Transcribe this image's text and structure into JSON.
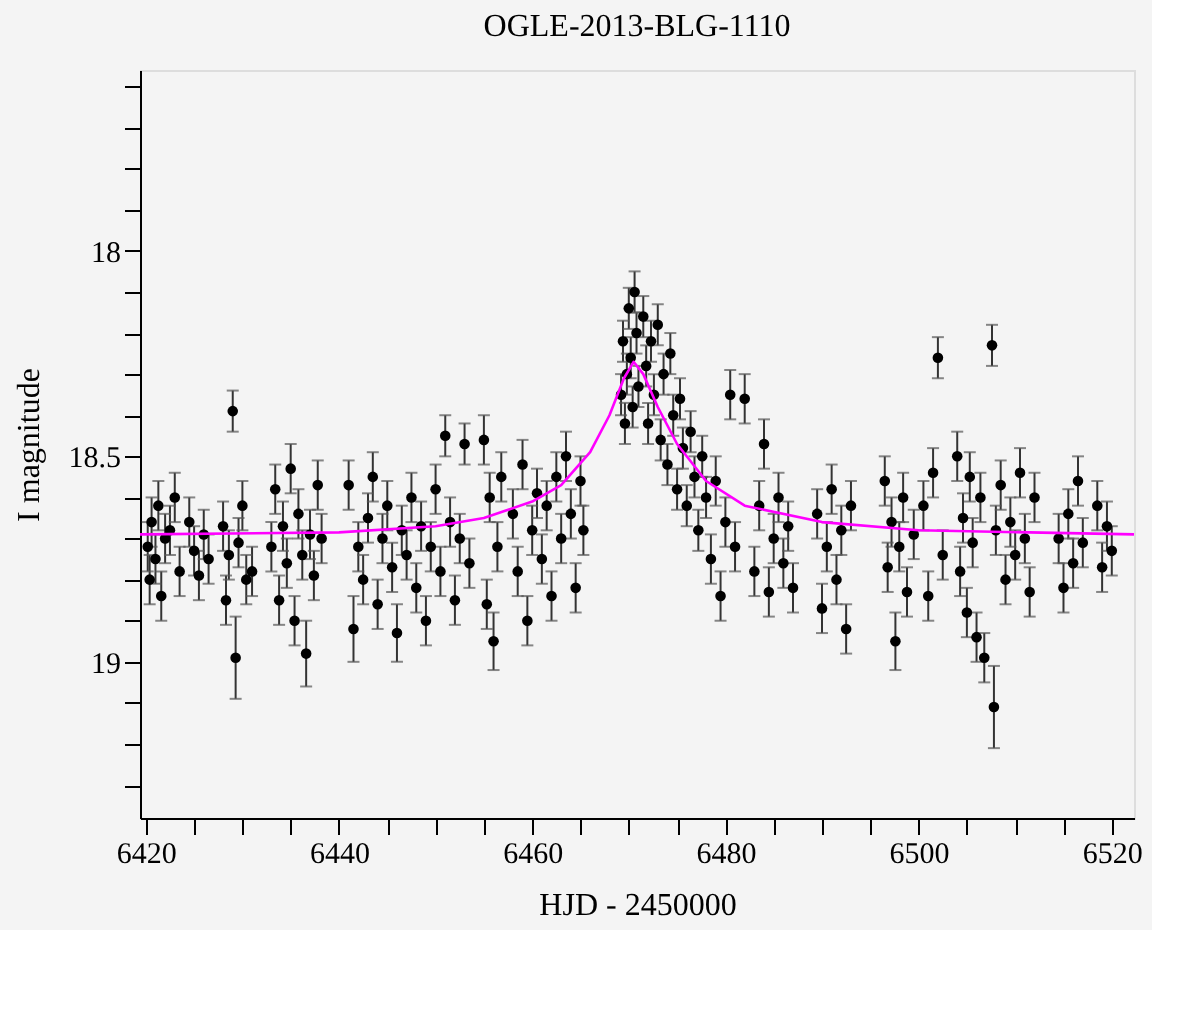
{
  "chart_data": {
    "type": "scatter",
    "title": "OGLE-2013-BLG-1110",
    "xlabel": "HJD - 2450000",
    "ylabel": "I magnitude",
    "xlim": [
      6419.4,
      6522.3
    ],
    "ylim": [
      19.38,
      17.56
    ],
    "xticks": [
      6420,
      {
        "value": 6425,
        "label": null
      },
      {
        "value": 6430,
        "label": null
      },
      {
        "value": 6435,
        "label": null
      },
      6440,
      {
        "value": 6445,
        "label": null
      },
      {
        "value": 6450,
        "label": null
      },
      {
        "value": 6455,
        "label": null
      },
      6460,
      {
        "value": 6465,
        "label": null
      },
      {
        "value": 6470,
        "label": null
      },
      {
        "value": 6475,
        "label": null
      },
      6480,
      {
        "value": 6485,
        "label": null
      },
      {
        "value": 6490,
        "label": null
      },
      {
        "value": 6495,
        "label": null
      },
      6500,
      {
        "value": 6505,
        "label": null
      },
      {
        "value": 6510,
        "label": null
      },
      {
        "value": 6515,
        "label": null
      },
      6520
    ],
    "yticks": [
      {
        "value": 17.6,
        "label": null
      },
      {
        "value": 17.7,
        "label": null
      },
      {
        "value": 17.8,
        "label": null
      },
      {
        "value": 17.9,
        "label": null
      },
      18,
      {
        "value": 18.1,
        "label": null
      },
      {
        "value": 18.2,
        "label": null
      },
      {
        "value": 18.3,
        "label": null
      },
      {
        "value": 18.4,
        "label": null
      },
      18.5,
      {
        "value": 18.6,
        "label": null
      },
      {
        "value": 18.7,
        "label": null
      },
      {
        "value": 18.8,
        "label": null
      },
      {
        "value": 18.9,
        "label": null
      },
      19,
      {
        "value": 19.1,
        "label": null
      },
      {
        "value": 19.2,
        "label": null
      },
      {
        "value": 19.3,
        "label": null
      }
    ],
    "grid": false,
    "series": [
      {
        "color": "#000000",
        "marker": "circle",
        "x": [
          6420.2,
          6420.4,
          6420.6,
          6421.0,
          6421.3,
          6421.6,
          6422.0,
          6422.5,
          6423.0,
          6423.5,
          6424.5,
          6425.0,
          6425.5,
          6426.0,
          6426.5,
          6428.0,
          6428.3,
          6428.6,
          6429.0,
          6429.3,
          6429.6,
          6430.0,
          6430.4,
          6431.0,
          6433.0,
          6433.4,
          6433.8,
          6434.2,
          6434.6,
          6435.0,
          6435.4,
          6435.8,
          6436.2,
          6436.6,
          6437.0,
          6437.4,
          6437.8,
          6438.2,
          6441.0,
          6441.5,
          6442.0,
          6442.5,
          6443.0,
          6443.5,
          6444.0,
          6444.5,
          6445.0,
          6445.5,
          6446.0,
          6446.5,
          6447.0,
          6447.5,
          6448.0,
          6448.5,
          6449.0,
          6449.5,
          6450.0,
          6450.5,
          6451.0,
          6451.5,
          6452.0,
          6452.5,
          6453.0,
          6453.5,
          6455.0,
          6455.3,
          6455.6,
          6456.0,
          6456.4,
          6456.8,
          6458.0,
          6458.5,
          6459.0,
          6459.5,
          6460.0,
          6460.5,
          6461.0,
          6461.5,
          6462.0,
          6462.5,
          6463.0,
          6463.5,
          6464.0,
          6464.5,
          6465.0,
          6465.3,
          6469.2,
          6469.4,
          6469.6,
          6469.8,
          6470.0,
          6470.2,
          6470.4,
          6470.6,
          6470.8,
          6471.0,
          6471.5,
          6471.8,
          6472.0,
          6472.3,
          6472.6,
          6473.0,
          6473.3,
          6473.6,
          6474.0,
          6474.3,
          6474.6,
          6475.0,
          6475.3,
          6475.6,
          6476.0,
          6476.4,
          6476.8,
          6477.2,
          6477.6,
          6478.0,
          6478.5,
          6479.0,
          6479.5,
          6480.0,
          6480.5,
          6481.0,
          6482.0,
          6483.0,
          6483.5,
          6484.0,
          6484.5,
          6485.0,
          6485.5,
          6486.0,
          6486.5,
          6487.0,
          6489.5,
          6490.0,
          6490.5,
          6491.0,
          6491.5,
          6492.0,
          6492.5,
          6493.0,
          6496.5,
          6496.8,
          6497.2,
          6497.6,
          6498.0,
          6498.4,
          6498.8,
          6499.5,
          6500.5,
          6501.0,
          6501.5,
          6502.0,
          6502.5,
          6504.0,
          6504.3,
          6504.6,
          6505.0,
          6505.3,
          6505.6,
          6506.0,
          6506.4,
          6506.8,
          6507.6,
          6507.8,
          6508.0,
          6508.5,
          6509.0,
          6509.5,
          6510.0,
          6510.5,
          6511.0,
          6511.5,
          6512.0,
          6514.5,
          6515.0,
          6515.5,
          6516.0,
          6516.5,
          6517.0,
          6518.5,
          6519.0,
          6519.5,
          6520.0
        ],
        "values": [
          18.72,
          18.8,
          18.66,
          18.75,
          18.62,
          18.84,
          18.7,
          18.68,
          18.6,
          18.78,
          18.66,
          18.73,
          18.79,
          18.69,
          18.75,
          18.67,
          18.85,
          18.74,
          18.39,
          18.99,
          18.71,
          18.62,
          18.8,
          18.78,
          18.72,
          18.58,
          18.85,
          18.67,
          18.76,
          18.53,
          18.9,
          18.64,
          18.74,
          18.98,
          18.69,
          18.79,
          18.57,
          18.7,
          18.57,
          18.92,
          18.72,
          18.8,
          18.65,
          18.55,
          18.86,
          18.7,
          18.62,
          18.77,
          18.93,
          18.68,
          18.74,
          18.6,
          18.82,
          18.67,
          18.9,
          18.72,
          18.58,
          18.78,
          18.45,
          18.66,
          18.85,
          18.7,
          18.47,
          18.76,
          18.46,
          18.86,
          18.6,
          18.95,
          18.72,
          18.55,
          18.64,
          18.78,
          18.52,
          18.9,
          18.68,
          18.59,
          18.75,
          18.62,
          18.84,
          18.55,
          18.7,
          18.5,
          18.64,
          18.82,
          18.56,
          18.68,
          18.35,
          18.22,
          18.42,
          18.3,
          18.14,
          18.26,
          18.38,
          18.1,
          18.2,
          18.33,
          18.16,
          18.28,
          18.42,
          18.22,
          18.35,
          18.18,
          18.46,
          18.3,
          18.52,
          18.25,
          18.4,
          18.58,
          18.36,
          18.48,
          18.62,
          18.44,
          18.55,
          18.68,
          18.5,
          18.6,
          18.75,
          18.56,
          18.84,
          18.66,
          18.35,
          18.72,
          18.36,
          18.78,
          18.62,
          18.47,
          18.83,
          18.7,
          18.6,
          18.76,
          18.67,
          18.82,
          18.64,
          18.87,
          18.72,
          18.58,
          18.8,
          18.68,
          18.92,
          18.62,
          18.56,
          18.77,
          18.66,
          18.95,
          18.72,
          18.6,
          18.83,
          18.69,
          18.62,
          18.84,
          18.54,
          18.26,
          18.74,
          18.5,
          18.78,
          18.65,
          18.88,
          18.55,
          18.71,
          18.94,
          18.6,
          18.99,
          18.23,
          19.11,
          18.68,
          18.57,
          18.8,
          18.66,
          18.74,
          18.54,
          18.7,
          18.83,
          18.6,
          18.7,
          18.82,
          18.64,
          18.76,
          18.56,
          18.71,
          18.62,
          18.77,
          18.67,
          18.73
        ],
        "errors": [
          0.06,
          0.06,
          0.06,
          0.06,
          0.06,
          0.06,
          0.06,
          0.06,
          0.06,
          0.06,
          0.06,
          0.06,
          0.06,
          0.06,
          0.06,
          0.06,
          0.06,
          0.06,
          0.05,
          0.1,
          0.06,
          0.06,
          0.06,
          0.06,
          0.06,
          0.06,
          0.06,
          0.06,
          0.06,
          0.06,
          0.06,
          0.06,
          0.06,
          0.08,
          0.06,
          0.06,
          0.06,
          0.06,
          0.06,
          0.08,
          0.06,
          0.06,
          0.06,
          0.06,
          0.06,
          0.06,
          0.06,
          0.06,
          0.07,
          0.06,
          0.06,
          0.06,
          0.06,
          0.06,
          0.06,
          0.06,
          0.06,
          0.06,
          0.05,
          0.06,
          0.06,
          0.06,
          0.05,
          0.06,
          0.06,
          0.06,
          0.06,
          0.07,
          0.06,
          0.06,
          0.06,
          0.06,
          0.06,
          0.06,
          0.06,
          0.06,
          0.06,
          0.06,
          0.06,
          0.06,
          0.06,
          0.06,
          0.06,
          0.06,
          0.06,
          0.06,
          0.05,
          0.05,
          0.05,
          0.05,
          0.05,
          0.05,
          0.05,
          0.05,
          0.05,
          0.05,
          0.05,
          0.05,
          0.05,
          0.05,
          0.05,
          0.05,
          0.05,
          0.05,
          0.05,
          0.05,
          0.05,
          0.05,
          0.05,
          0.05,
          0.05,
          0.05,
          0.05,
          0.05,
          0.05,
          0.05,
          0.06,
          0.06,
          0.06,
          0.06,
          0.06,
          0.06,
          0.06,
          0.06,
          0.06,
          0.06,
          0.06,
          0.06,
          0.06,
          0.06,
          0.06,
          0.06,
          0.06,
          0.06,
          0.06,
          0.06,
          0.06,
          0.06,
          0.06,
          0.06,
          0.06,
          0.06,
          0.06,
          0.07,
          0.06,
          0.06,
          0.06,
          0.06,
          0.06,
          0.06,
          0.06,
          0.05,
          0.06,
          0.06,
          0.06,
          0.06,
          0.06,
          0.06,
          0.06,
          0.06,
          0.06,
          0.06,
          0.05,
          0.1,
          0.06,
          0.06,
          0.06,
          0.06,
          0.06,
          0.06,
          0.06,
          0.06,
          0.06,
          0.06,
          0.06,
          0.06,
          0.06,
          0.06,
          0.06,
          0.06,
          0.06,
          0.06,
          0.06
        ]
      },
      {
        "type": "line",
        "color": "#ff00ff",
        "marker": "none",
        "x": [
          6419.4,
          6440,
          6450,
          6455,
          6460,
          6463,
          6466,
          6468,
          6469.5,
          6470.5,
          6471.5,
          6473,
          6475,
          6478,
          6482,
          6490,
          6500,
          6522.3
        ],
        "values": [
          18.69,
          18.685,
          18.67,
          18.65,
          18.61,
          18.57,
          18.49,
          18.4,
          18.31,
          18.27,
          18.3,
          18.38,
          18.47,
          18.56,
          18.62,
          18.66,
          18.68,
          18.69
        ]
      }
    ]
  }
}
